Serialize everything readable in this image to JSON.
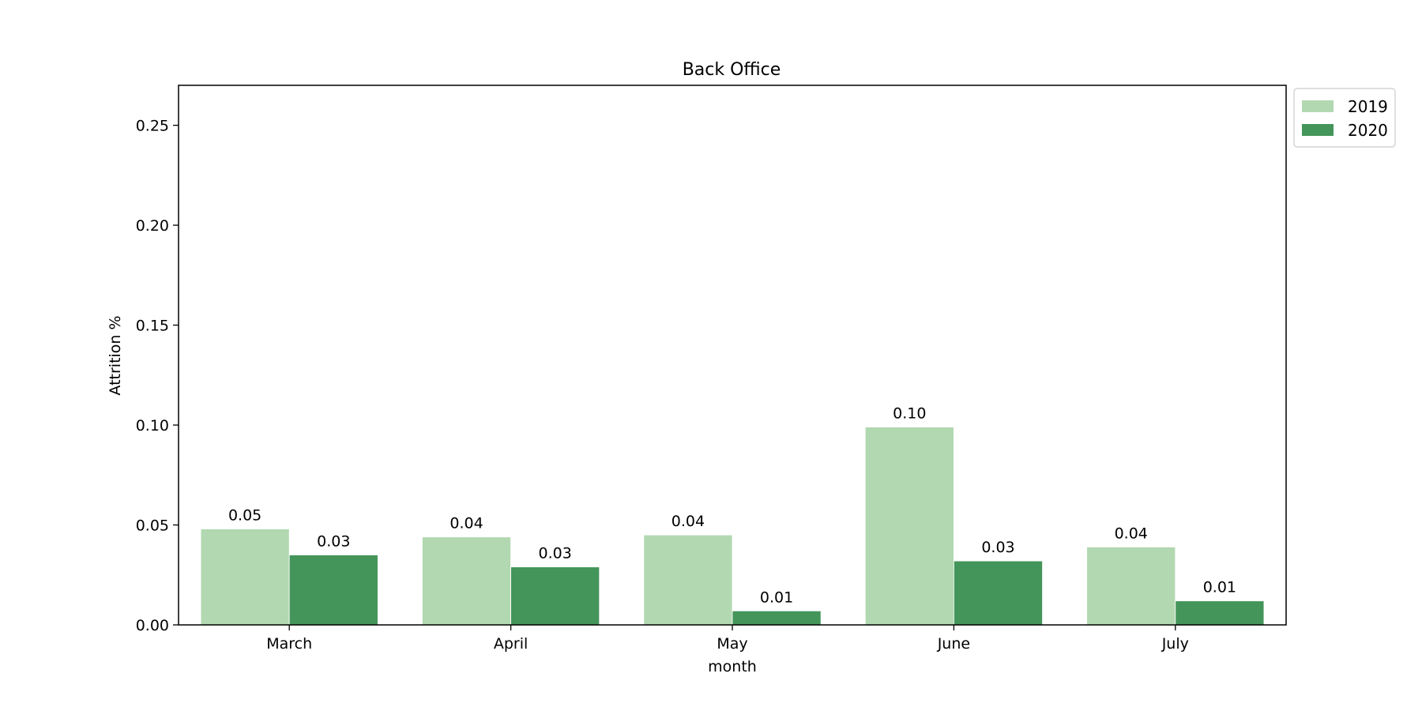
{
  "chart_data": {
    "type": "bar",
    "title": "Back Office",
    "xlabel": "month",
    "ylabel": "Attrition %",
    "categories": [
      "March",
      "April",
      "May",
      "June",
      "July"
    ],
    "series": [
      {
        "name": "2019",
        "color": "#b2d8b1",
        "values": [
          0.048,
          0.044,
          0.045,
          0.099,
          0.039
        ],
        "labels": [
          "0.05",
          "0.04",
          "0.04",
          "0.10",
          "0.04"
        ]
      },
      {
        "name": "2020",
        "color": "#44955a",
        "values": [
          0.035,
          0.029,
          0.007,
          0.032,
          0.012
        ],
        "labels": [
          "0.03",
          "0.03",
          "0.01",
          "0.03",
          "0.01"
        ]
      }
    ],
    "ylim": [
      0,
      0.27
    ],
    "yticks": [
      0,
      0.05,
      0.1,
      0.15,
      0.2,
      0.25
    ],
    "ytick_labels": [
      "0.00",
      "0.05",
      "0.10",
      "0.15",
      "0.20",
      "0.25"
    ],
    "grid": false,
    "legend_position": "outside top-right"
  }
}
